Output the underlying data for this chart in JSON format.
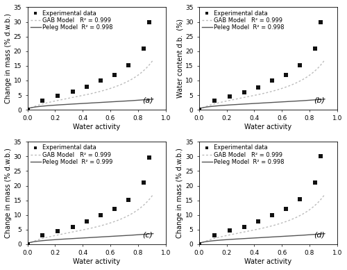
{
  "subplots": [
    {
      "label": "(a)",
      "ylabel": "Change in mass (% d.w.b.)",
      "xlabel": "Water activity",
      "ylim": [
        0,
        35
      ],
      "yticks": [
        0,
        5,
        10,
        15,
        20,
        25,
        30,
        35
      ],
      "xlim": [
        0.0,
        1.0
      ],
      "xticks": [
        0.0,
        0.2,
        0.4,
        0.6,
        0.8,
        1.0
      ],
      "exp_x": [
        0.0,
        0.11,
        0.22,
        0.33,
        0.43,
        0.53,
        0.63,
        0.73,
        0.84,
        0.88
      ],
      "exp_y": [
        0.0,
        3.0,
        4.8,
        6.3,
        7.8,
        9.9,
        12.0,
        15.3,
        21.0,
        29.8
      ],
      "gab_r2": "0.999",
      "peleg_r2": "0.998"
    },
    {
      "label": "(b)",
      "ylabel": "Water content d.b.  (%)",
      "xlabel": "Water activity",
      "ylim": [
        0,
        35
      ],
      "yticks": [
        0,
        5,
        10,
        15,
        20,
        25,
        30,
        35
      ],
      "xlim": [
        0.0,
        1.0
      ],
      "xticks": [
        0.0,
        0.2,
        0.4,
        0.6,
        0.8,
        1.0
      ],
      "exp_x": [
        0.0,
        0.11,
        0.22,
        0.33,
        0.43,
        0.53,
        0.63,
        0.73,
        0.84,
        0.88
      ],
      "exp_y": [
        0.0,
        3.1,
        4.6,
        5.9,
        7.7,
        9.9,
        11.9,
        15.1,
        21.0,
        30.0
      ],
      "gab_r2": "0.999",
      "peleg_r2": "0.998"
    },
    {
      "label": "(c)",
      "ylabel": "Change in mass (% d.w.b.)",
      "xlabel": "Water activity",
      "ylim": [
        0,
        35
      ],
      "yticks": [
        0,
        5,
        10,
        15,
        20,
        25,
        30,
        35
      ],
      "xlim": [
        0.0,
        1.0
      ],
      "xticks": [
        0.0,
        0.2,
        0.4,
        0.6,
        0.8,
        1.0
      ],
      "exp_x": [
        0.0,
        0.11,
        0.22,
        0.33,
        0.43,
        0.53,
        0.63,
        0.73,
        0.84,
        0.88
      ],
      "exp_y": [
        0.0,
        3.0,
        4.6,
        5.8,
        7.7,
        9.9,
        12.0,
        15.1,
        21.0,
        29.7
      ],
      "gab_r2": "0.999",
      "peleg_r2": "0.999"
    },
    {
      "label": "(d)",
      "ylabel": "Change in mass (% d.w.b.)",
      "xlabel": "Water activity",
      "ylim": [
        0,
        35
      ],
      "yticks": [
        0,
        5,
        10,
        15,
        20,
        25,
        30,
        35
      ],
      "xlim": [
        0.0,
        1.0
      ],
      "xticks": [
        0.0,
        0.2,
        0.4,
        0.6,
        0.8,
        1.0
      ],
      "exp_x": [
        0.0,
        0.11,
        0.22,
        0.33,
        0.43,
        0.53,
        0.63,
        0.73,
        0.84,
        0.88
      ],
      "exp_y": [
        0.0,
        3.1,
        4.7,
        6.0,
        7.8,
        10.0,
        12.1,
        15.3,
        21.1,
        30.1
      ],
      "gab_r2": "0.999",
      "peleg_r2": "0.998"
    }
  ],
  "dot_color": "#111111",
  "gab_color": "#bbbbbb",
  "peleg_color": "#555555",
  "background_color": "#ffffff",
  "tick_fontsize": 6.5,
  "axis_label_fontsize": 7,
  "legend_fontsize": 6,
  "panel_label_fontsize": 8,
  "marker_size": 16,
  "line_width": 1.0
}
